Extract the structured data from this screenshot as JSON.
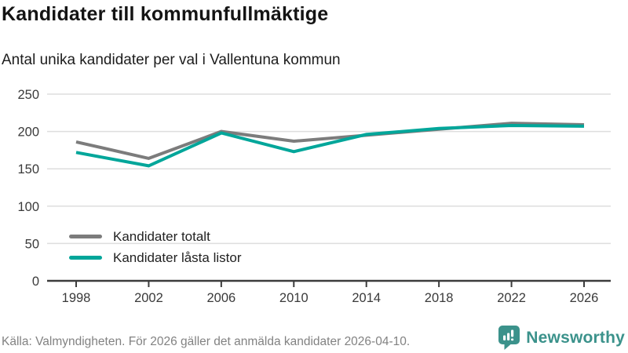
{
  "header": {
    "title": "Kandidater till kommunfullmäktige",
    "subtitle": "Antal unika kandidater per val i Vallentuna kommun"
  },
  "chart_data": {
    "type": "line",
    "title": "Kandidater till kommunfullmäktige",
    "subtitle": "Antal unika kandidater per val i Vallentuna kommun",
    "x": [
      1998,
      2002,
      2006,
      2010,
      2014,
      2018,
      2022,
      2026
    ],
    "series": [
      {
        "name": "Kandidater totalt",
        "color": "#7c7c7c",
        "values": [
          186,
          164,
          200,
          187,
          195,
          203,
          211,
          209
        ]
      },
      {
        "name": "Kandidater låsta listor",
        "color": "#00a69a",
        "values": [
          172,
          154,
          198,
          173,
          196,
          204,
          208,
          207
        ]
      }
    ],
    "xlabel": "",
    "ylabel": "",
    "ylim": [
      0,
      250
    ],
    "yticks": [
      0,
      50,
      100,
      150,
      200,
      250
    ],
    "grid": true,
    "legend_position": "inside bottom-left"
  },
  "footer": {
    "source": "Källa: Valmyndigheten. För 2026 gäller det anmälda kandidater 2026-04-10.",
    "brand": "Newsworthy",
    "brand_color": "#3b928b"
  }
}
